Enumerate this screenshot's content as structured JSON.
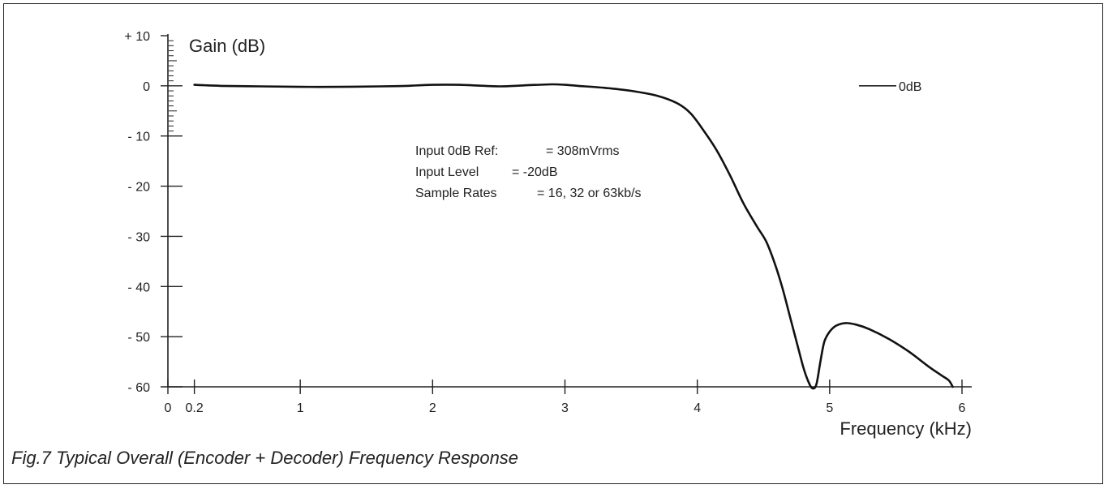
{
  "caption": "Fig.7 Typical Overall (Encoder + Decoder) Frequency Response",
  "chart_data": {
    "type": "line",
    "title": "",
    "ylabel": "Gain (dB)",
    "xlabel": "Frequency (kHz)",
    "ylim": [
      -60,
      10
    ],
    "xlim": [
      0,
      6
    ],
    "y_ticks": [
      10,
      0,
      -10,
      -20,
      -30,
      -40,
      -50,
      -60
    ],
    "y_tick_labels": [
      "+ 10",
      "0",
      "- 10",
      "- 20",
      "- 30",
      "- 40",
      "- 50",
      "- 60"
    ],
    "x_ticks": [
      0,
      0.2,
      1,
      2,
      3,
      4,
      5,
      6
    ],
    "x_tick_labels": [
      "0",
      "0.2",
      "1",
      "2",
      "3",
      "4",
      "5",
      "6"
    ],
    "legend": {
      "label": "0dB",
      "position": "top-right"
    },
    "annotations": [
      {
        "label": "Input 0dB Ref:",
        "value": "= 308mVrms"
      },
      {
        "label": "Input Level",
        "value": "= -20dB"
      },
      {
        "label": "Sample Rates",
        "value": "= 16, 32 or 63kb/s"
      }
    ],
    "series": [
      {
        "name": "0dB",
        "x": [
          0.2,
          0.4,
          0.7,
          1.0,
          1.3,
          1.6,
          1.8,
          2.0,
          2.2,
          2.5,
          2.7,
          2.9,
          3.0,
          3.1,
          3.3,
          3.5,
          3.7,
          3.85,
          3.95,
          4.05,
          4.15,
          4.25,
          4.35,
          4.45,
          4.52,
          4.58,
          4.64,
          4.7,
          4.75,
          4.8,
          4.84,
          4.87,
          4.9,
          4.93,
          4.96,
          5.0,
          5.05,
          5.12,
          5.2,
          5.3,
          5.45,
          5.6,
          5.75,
          5.85,
          5.9,
          5.93
        ],
        "y": [
          0.2,
          0.0,
          -0.1,
          -0.2,
          -0.2,
          -0.1,
          0.0,
          0.2,
          0.2,
          -0.1,
          0.1,
          0.3,
          0.2,
          0.0,
          -0.4,
          -1.0,
          -2.0,
          -3.5,
          -5.5,
          -9.0,
          -13.0,
          -18.0,
          -23.5,
          -28.0,
          -31.0,
          -35.0,
          -40.0,
          -46.0,
          -51.0,
          -56.0,
          -59.0,
          -60.3,
          -59.5,
          -55.0,
          -51.0,
          -49.0,
          -47.8,
          -47.3,
          -47.6,
          -48.5,
          -50.5,
          -53.0,
          -56.0,
          -57.8,
          -58.7,
          -60.0
        ]
      }
    ]
  }
}
